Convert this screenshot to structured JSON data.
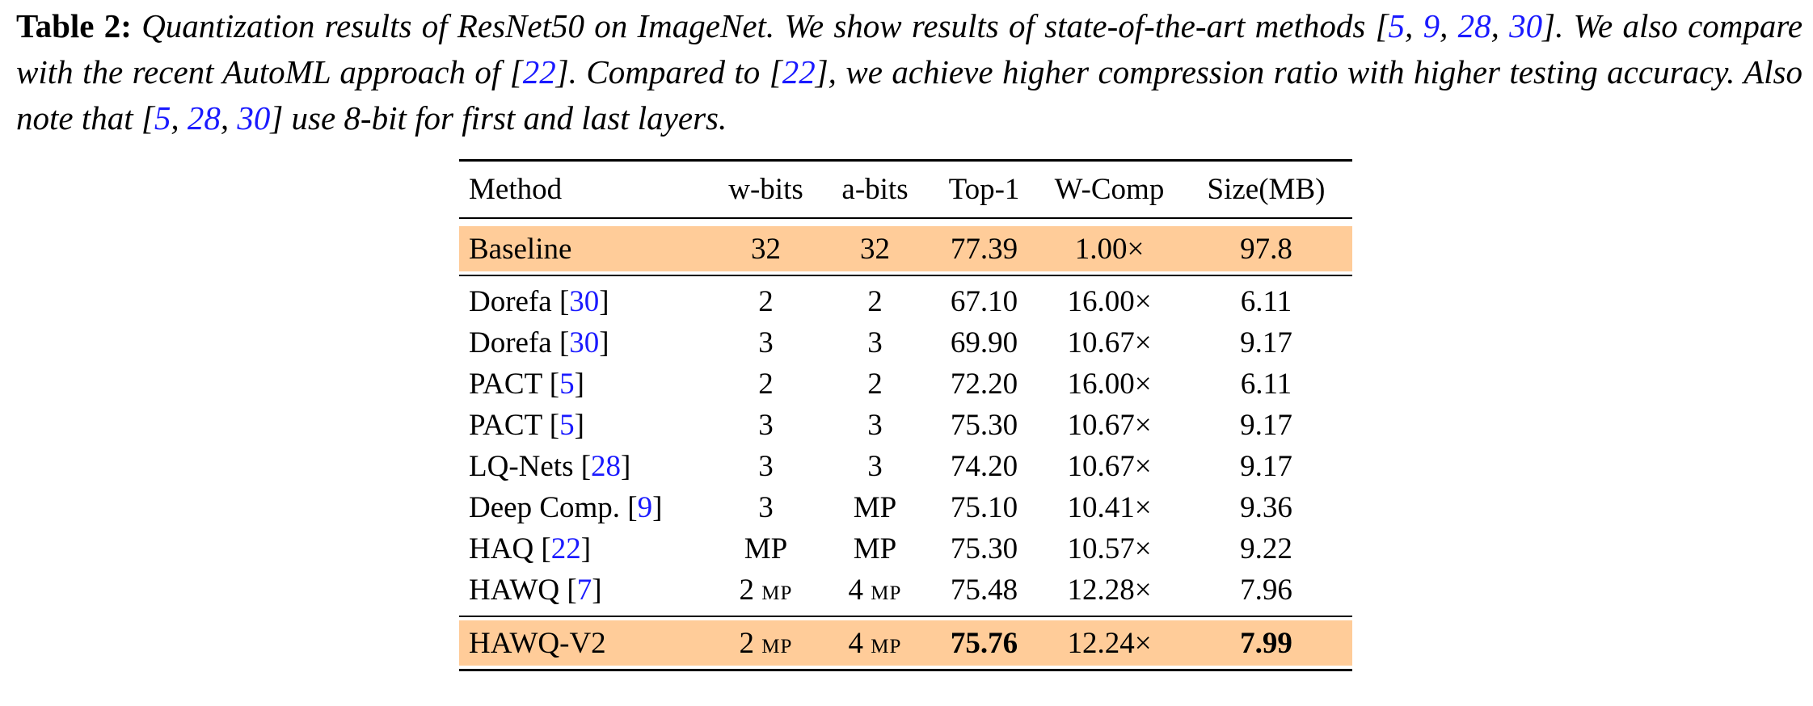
{
  "caption": {
    "label": "Table 2:",
    "parts": [
      "Quantization results of ResNet50 on ImageNet. We show results of state-of-the-art methods [",
      "5",
      ", ",
      "9",
      ", ",
      "28",
      ", ",
      "30",
      "]. We also compare with the recent AutoML approach of [",
      "22",
      "]. Compared to [",
      "22",
      "], we achieve higher compression ratio with higher testing accuracy. Also note that [",
      "5",
      ", ",
      "28",
      ", ",
      "30",
      "] use 8-bit for first and last layers."
    ]
  },
  "table": {
    "headers": [
      "Method",
      "w-bits",
      "a-bits",
      "Top-1",
      "W-Comp",
      "Size(MB)"
    ],
    "baseline": {
      "method": "Baseline",
      "w": "32",
      "a": "32",
      "top1": "77.39",
      "comp": "1.00×",
      "size": "97.8"
    },
    "rows": [
      {
        "method": "Dorefa [",
        "cite": "30",
        "w": "2",
        "a": "2",
        "top1": "67.10",
        "comp": "16.00×",
        "size": "6.11"
      },
      {
        "method": "Dorefa [",
        "cite": "30",
        "w": "3",
        "a": "3",
        "top1": "69.90",
        "comp": "10.67×",
        "size": "9.17"
      },
      {
        "method": "PACT [",
        "cite": "5",
        "w": "2",
        "a": "2",
        "top1": "72.20",
        "comp": "16.00×",
        "size": "6.11"
      },
      {
        "method": "PACT [",
        "cite": "5",
        "w": "3",
        "a": "3",
        "top1": "75.30",
        "comp": "10.67×",
        "size": "9.17"
      },
      {
        "method": "LQ-Nets [",
        "cite": "28",
        "w": "3",
        "a": "3",
        "top1": "74.20",
        "comp": "10.67×",
        "size": "9.17"
      },
      {
        "method": "Deep Comp. [",
        "cite": "9",
        "w": "3",
        "a": "MP",
        "top1": "75.10",
        "comp": "10.41×",
        "size": "9.36"
      },
      {
        "method": "HAQ [",
        "cite": "22",
        "w": "MP",
        "a": "MP",
        "top1": "75.30",
        "comp": "10.57×",
        "size": "9.22"
      },
      {
        "method": "HAWQ [",
        "cite": "7",
        "w": "2",
        "w_sub": "MP",
        "a": "4",
        "a_sub": "MP",
        "top1": "75.48",
        "comp": "12.28×",
        "size": "7.96"
      }
    ],
    "ours": {
      "method": "HAWQ-V2",
      "w": "2",
      "w_sub": "MP",
      "a": "4",
      "a_sub": "MP",
      "top1": "75.76",
      "comp": "12.24×",
      "size": "7.99"
    },
    "highlight_color": "#ffcc99",
    "citation_color": "#1a1aff"
  }
}
